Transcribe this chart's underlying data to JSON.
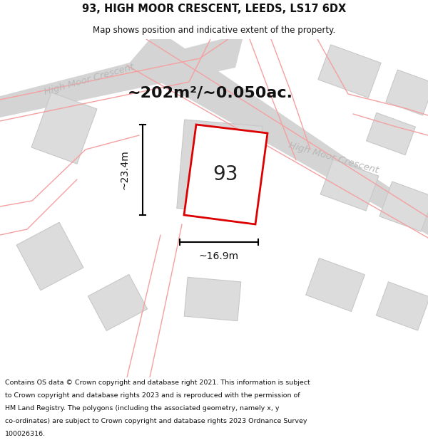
{
  "title_line1": "93, HIGH MOOR CRESCENT, LEEDS, LS17 6DX",
  "title_line2": "Map shows position and indicative extent of the property.",
  "area_text": "~202m²/~0.050ac.",
  "label_93": "93",
  "dim_width": "~16.9m",
  "dim_height": "~23.4m",
  "street_name_1": "High Moor Crescent",
  "street_name_2": "High Moor Crescent",
  "footer_lines": [
    "Contains OS data © Crown copyright and database right 2021. This information is subject",
    "to Crown copyright and database rights 2023 and is reproduced with the permission of",
    "HM Land Registry. The polygons (including the associated geometry, namely x, y",
    "co-ordinates) are subject to Crown copyright and database rights 2023 Ordnance Survey",
    "100026316."
  ],
  "map_bg": "#ebebeb",
  "road_fill": "#d4d4d4",
  "building_fill": "#dcdcdc",
  "building_edge": "#c8c8c8",
  "road_line_color": "#f5a0a0",
  "highlight_color": "#dd0000",
  "street_label_color": "#b8b8b8",
  "title_color": "#111111",
  "footer_color": "#111111",
  "dim_color": "#111111",
  "white": "#ffffff"
}
